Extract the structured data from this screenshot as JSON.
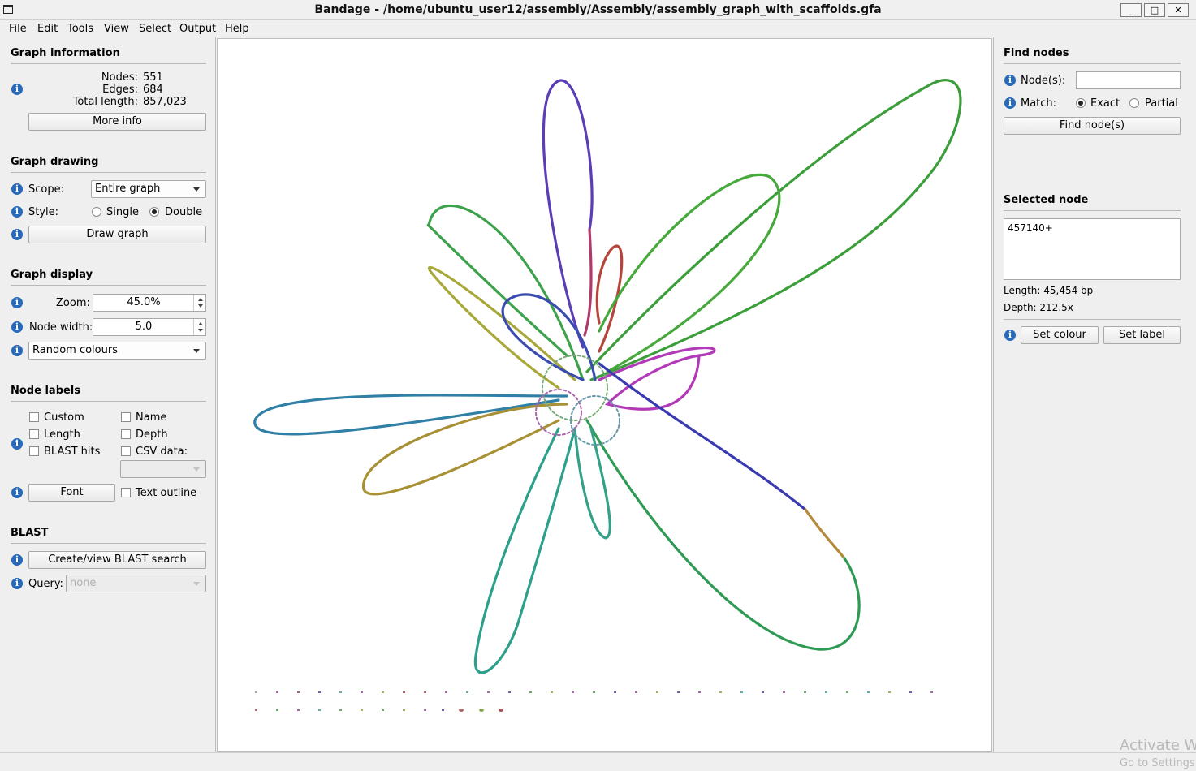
{
  "window": {
    "title": "Bandage - /home/ubuntu_user12/assembly/Assembly/assembly_graph_with_scaffolds.gfa",
    "minimize_glyph": "_",
    "maximize_glyph": "□",
    "close_glyph": "✕"
  },
  "menu": [
    "File",
    "Edit",
    "Tools",
    "View",
    "Select",
    "Output",
    "Help"
  ],
  "graph_info": {
    "title": "Graph information",
    "nodes_label": "Nodes:",
    "nodes_value": "551",
    "edges_label": "Edges:",
    "edges_value": "684",
    "length_label": "Total length:",
    "length_value": "857,023",
    "more_info_button": "More info"
  },
  "graph_drawing": {
    "title": "Graph drawing",
    "scope_label": "Scope:",
    "scope_value": "Entire graph",
    "style_label": "Style:",
    "style_single": "Single",
    "style_double": "Double",
    "style_selected": "Double",
    "draw_button": "Draw graph"
  },
  "graph_display": {
    "title": "Graph display",
    "zoom_label": "Zoom:",
    "zoom_value": "45.0%",
    "node_width_label": "Node width:",
    "node_width_value": "5.0",
    "colour_scheme": "Random colours"
  },
  "node_labels": {
    "title": "Node labels",
    "custom": "Custom",
    "name": "Name",
    "length": "Length",
    "depth": "Depth",
    "blast_hits": "BLAST hits",
    "csv_data": "CSV data:",
    "font_button": "Font",
    "text_outline": "Text outline"
  },
  "blast": {
    "title": "BLAST",
    "search_button": "Create/view BLAST search",
    "query_label": "Query:",
    "query_value": "none"
  },
  "find_nodes": {
    "title": "Find nodes",
    "nodes_label": "Node(s):",
    "nodes_value": "",
    "match_label": "Match:",
    "match_exact": "Exact",
    "match_partial": "Partial",
    "match_selected": "Exact",
    "find_button": "Find node(s)"
  },
  "selected_node": {
    "title": "Selected node",
    "name": "457140+",
    "length_text": "Length: 45,454 bp",
    "depth_text": "Depth: 212.5x",
    "set_colour_button": "Set colour",
    "set_label_button": "Set label"
  },
  "watermark": {
    "line1": "Activate W",
    "line2": "Go to Settings"
  },
  "colors": {
    "info_icon": "#2869b8",
    "graph_background": "#ffffff",
    "panel_background": "#efefef"
  }
}
